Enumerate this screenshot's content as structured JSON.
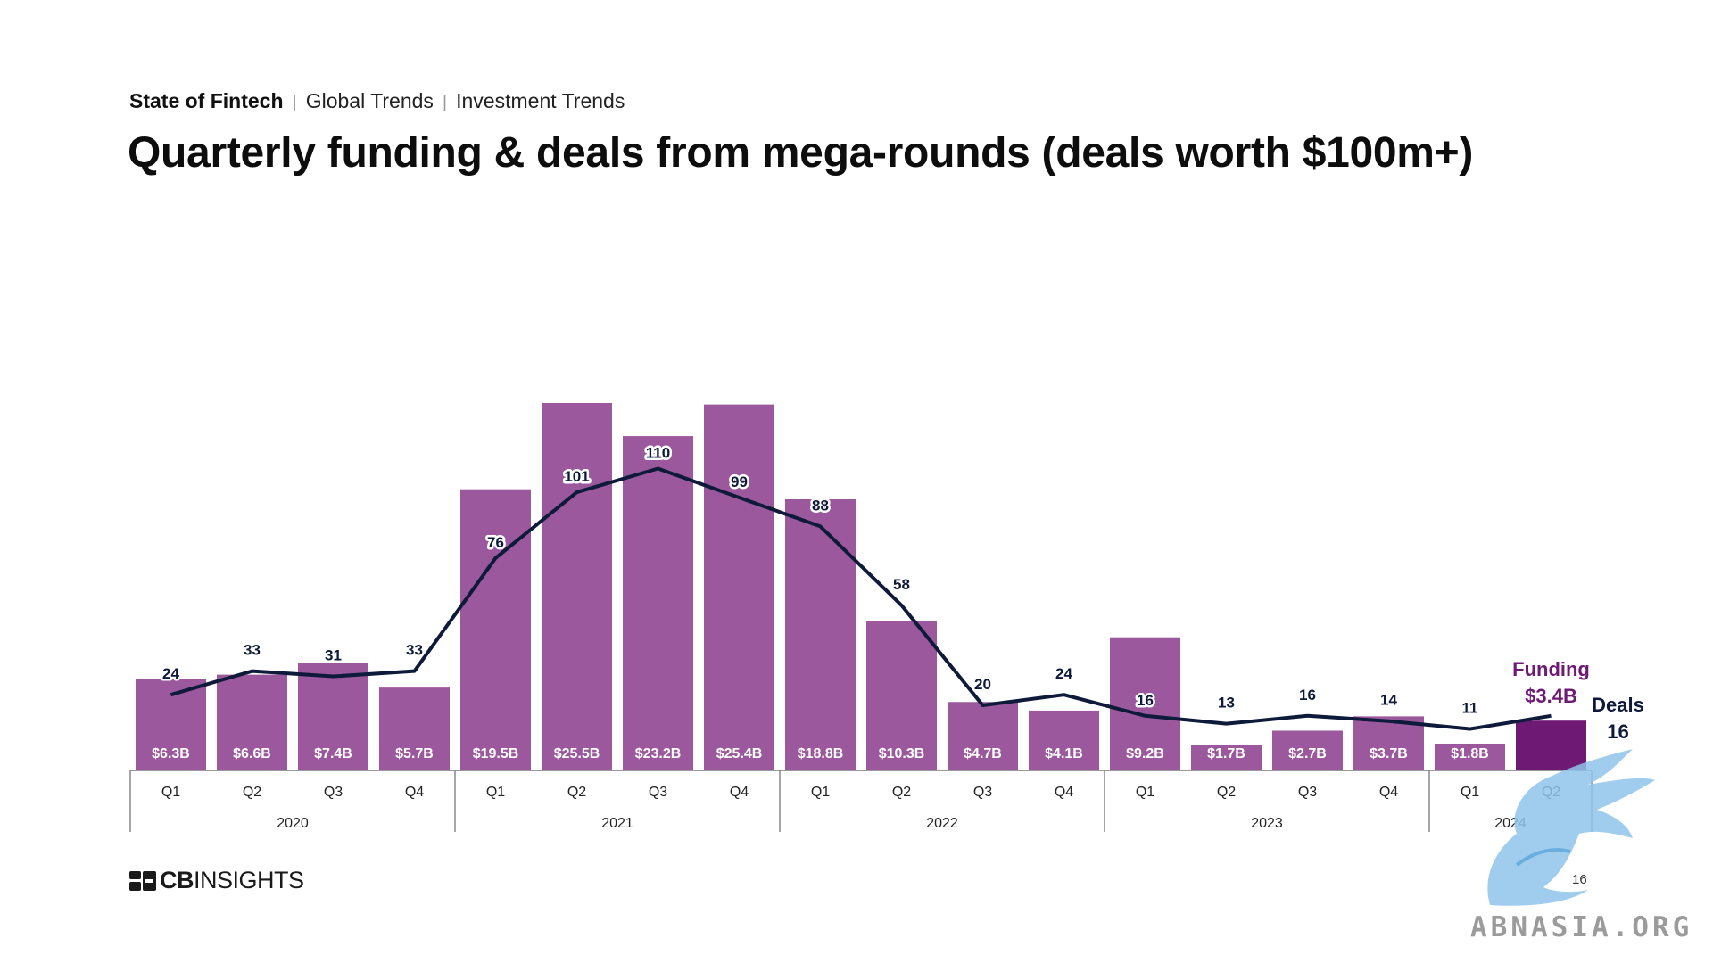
{
  "breadcrumb": {
    "section": "State of Fintech",
    "topic": "Global Trends",
    "subtopic": "Investment Trends",
    "separator": "|"
  },
  "title": "Quarterly funding & deals from mega-rounds (deals worth $100m+)",
  "chart_data": {
    "type": "bar",
    "title": "Quarterly funding & deals from mega-rounds (deals worth $100m+)",
    "categories": [
      "Q1",
      "Q2",
      "Q3",
      "Q4",
      "Q1",
      "Q2",
      "Q3",
      "Q4",
      "Q1",
      "Q2",
      "Q3",
      "Q4",
      "Q1",
      "Q2",
      "Q3",
      "Q4",
      "Q1",
      "Q2"
    ],
    "years": [
      {
        "label": "2020",
        "quarters": 4
      },
      {
        "label": "2021",
        "quarters": 4
      },
      {
        "label": "2022",
        "quarters": 4
      },
      {
        "label": "2023",
        "quarters": 4
      },
      {
        "label": "2024",
        "quarters": 2
      }
    ],
    "series": [
      {
        "name": "Funding",
        "kind": "bar",
        "values": [
          6.3,
          6.6,
          7.4,
          5.7,
          19.5,
          25.5,
          23.2,
          25.4,
          18.8,
          10.3,
          4.7,
          4.1,
          9.2,
          1.7,
          2.7,
          3.7,
          1.8,
          3.4
        ],
        "labels": [
          "$6.3B",
          "$6.6B",
          "$7.4B",
          "$5.7B",
          "$19.5B",
          "$25.5B",
          "$23.2B",
          "$25.4B",
          "$18.8B",
          "$10.3B",
          "$4.7B",
          "$4.1B",
          "$9.2B",
          "$1.7B",
          "$2.7B",
          "$3.7B",
          "$1.8B",
          ""
        ],
        "color": "#9b589c",
        "highlight_color": "#6e1a74"
      },
      {
        "name": "Deals",
        "kind": "line",
        "values": [
          24,
          33,
          31,
          33,
          76,
          101,
          110,
          99,
          88,
          58,
          20,
          24,
          16,
          13,
          16,
          14,
          11,
          16
        ],
        "color": "#0e1a3a"
      }
    ],
    "callouts": {
      "funding_title": "Funding",
      "funding_value": "$3.4B",
      "deals_title": "Deals",
      "deals_value": "16",
      "funding_color": "#6e1a74",
      "deals_color": "#0e1a3a"
    },
    "funding_max": 26,
    "deals_max": 120,
    "legend": "none",
    "grid": false
  },
  "footer": {
    "logo_bold": "CB",
    "logo_light": "INSIGHTS",
    "page_number": "16",
    "watermark": "ABNASIA.ORG"
  }
}
